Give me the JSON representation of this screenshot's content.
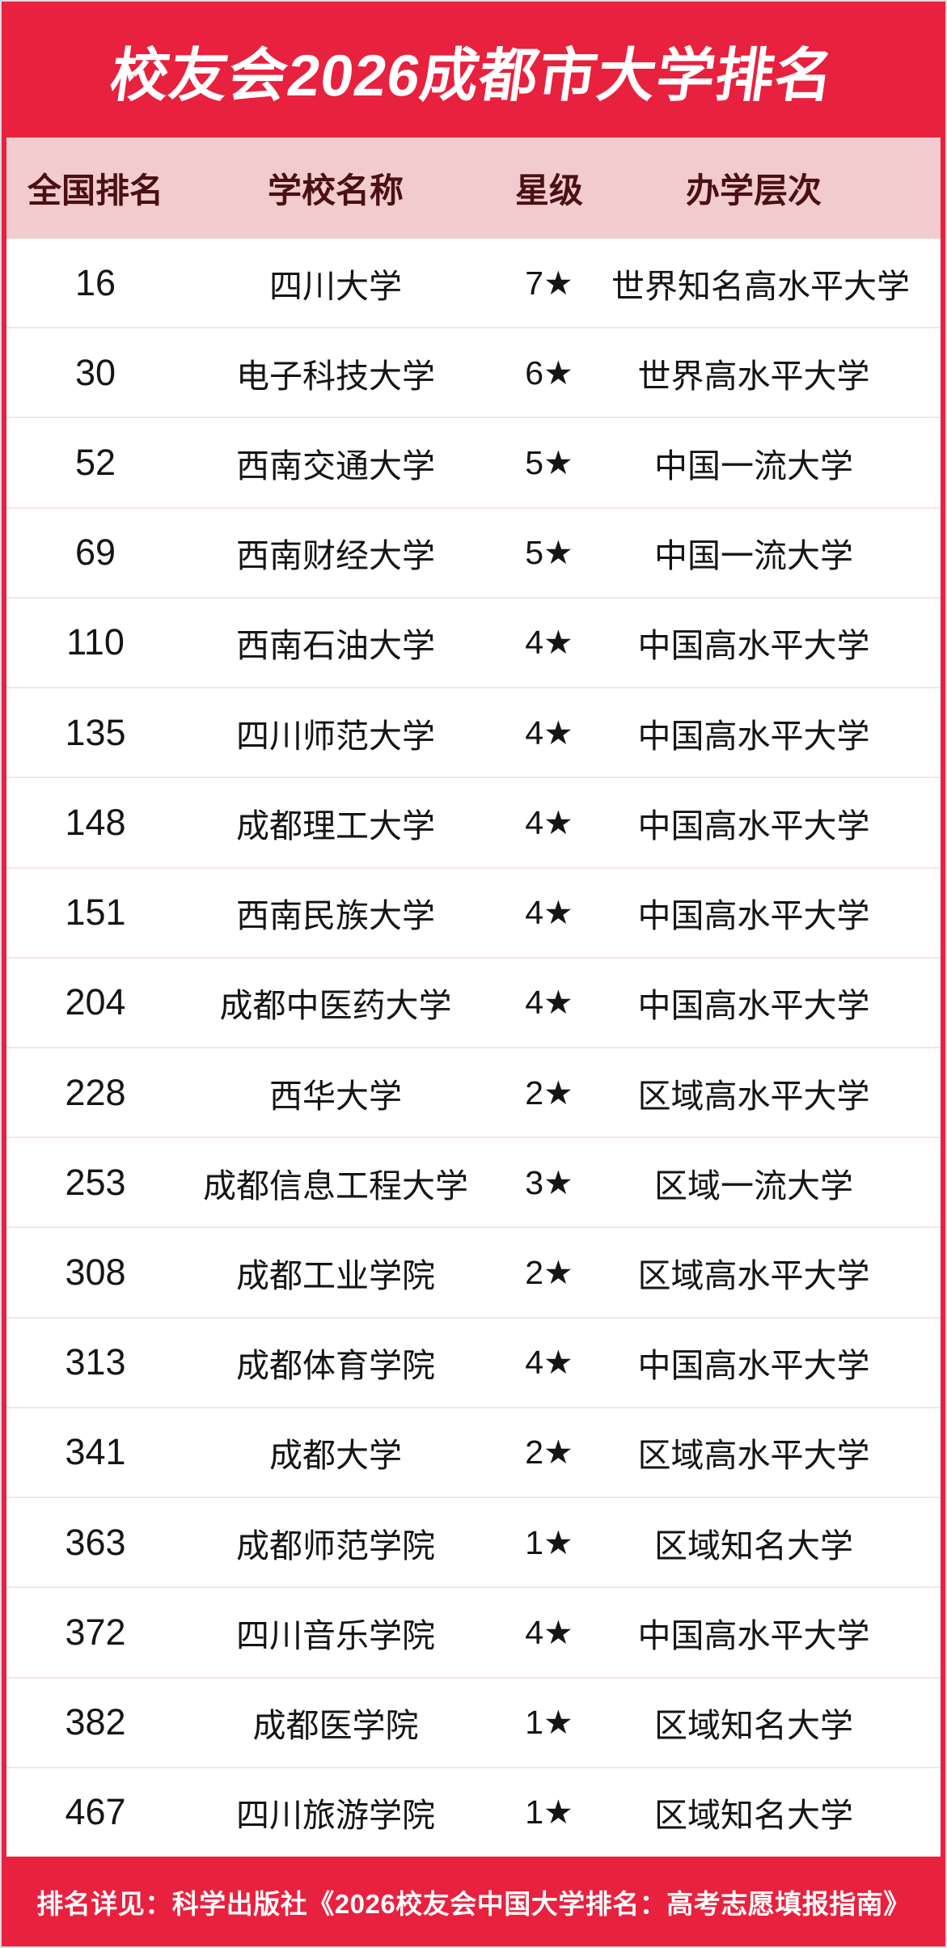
{
  "colors": {
    "background_red": "#E8213E",
    "header_pink": "#F2CBCE",
    "header_text_maroon": "#4A1013",
    "row_divider_pink": "#F7E3E5",
    "body_text": "#151515",
    "title_text": "#FFFFFF"
  },
  "chart_data": {
    "type": "table",
    "title": "校友会2026成都市大学排名",
    "columns": [
      "全国排名",
      "学校名称",
      "星级",
      "办学层次"
    ],
    "rows": [
      {
        "rank": "16",
        "name": "四川大学",
        "stars": "7★",
        "level": "世界知名高水平大学"
      },
      {
        "rank": "30",
        "name": "电子科技大学",
        "stars": "6★",
        "level": "世界高水平大学"
      },
      {
        "rank": "52",
        "name": "西南交通大学",
        "stars": "5★",
        "level": "中国一流大学"
      },
      {
        "rank": "69",
        "name": "西南财经大学",
        "stars": "5★",
        "level": "中国一流大学"
      },
      {
        "rank": "110",
        "name": "西南石油大学",
        "stars": "4★",
        "level": "中国高水平大学"
      },
      {
        "rank": "135",
        "name": "四川师范大学",
        "stars": "4★",
        "level": "中国高水平大学"
      },
      {
        "rank": "148",
        "name": "成都理工大学",
        "stars": "4★",
        "level": "中国高水平大学"
      },
      {
        "rank": "151",
        "name": "西南民族大学",
        "stars": "4★",
        "level": "中国高水平大学"
      },
      {
        "rank": "204",
        "name": "成都中医药大学",
        "stars": "4★",
        "level": "中国高水平大学"
      },
      {
        "rank": "228",
        "name": "西华大学",
        "stars": "2★",
        "level": "区域高水平大学"
      },
      {
        "rank": "253",
        "name": "成都信息工程大学",
        "stars": "3★",
        "level": "区域一流大学"
      },
      {
        "rank": "308",
        "name": "成都工业学院",
        "stars": "2★",
        "level": "区域高水平大学"
      },
      {
        "rank": "313",
        "name": "成都体育学院",
        "stars": "4★",
        "level": "中国高水平大学"
      },
      {
        "rank": "341",
        "name": "成都大学",
        "stars": "2★",
        "level": "区域高水平大学"
      },
      {
        "rank": "363",
        "name": "成都师范学院",
        "stars": "1★",
        "level": "区域知名大学"
      },
      {
        "rank": "372",
        "name": "四川音乐学院",
        "stars": "4★",
        "level": "中国高水平大学"
      },
      {
        "rank": "382",
        "name": "成都医学院",
        "stars": "1★",
        "level": "区域知名大学"
      },
      {
        "rank": "467",
        "name": "四川旅游学院",
        "stars": "1★",
        "level": "区域知名大学"
      }
    ],
    "footer": "排名详见：科学出版社《2026校友会中国大学排名：高考志愿填报指南》"
  }
}
